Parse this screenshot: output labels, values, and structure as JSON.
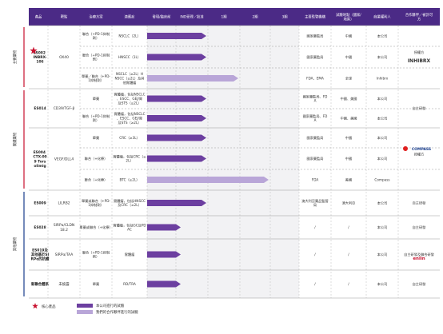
{
  "header": {
    "columns": [
      "產品",
      "靶點",
      "治療方案",
      "適應症",
      "發現/臨床前",
      "IND受理／批准",
      "1期",
      "2期",
      "3期",
      "主要監管機構",
      "試驗地點（國家/地區）",
      "商業權利人",
      "合作夥伴／被許可方"
    ]
  },
  "side_groups": [
    {
      "label": "主要藥物",
      "color": "#c8102e"
    },
    {
      "label": "關鍵藥物",
      "color": "#c8102e"
    },
    {
      "label": "其他藥物",
      "color": "#1a3e8c"
    }
  ],
  "rows": [
    {
      "product": "ES002 INBRX-106",
      "star": true,
      "target": "OX40",
      "regimen": "聯合（+PD-1抑制劑）",
      "indication": "NSCLC（2L）",
      "value": 1,
      "style": "own",
      "regulator": "國家藥監局",
      "region": "中國",
      "owner": "本公司",
      "partner": "授權方"
    },
    {
      "product": "",
      "star": false,
      "target": "",
      "regimen": "聯合（+PD-1抑制劑）",
      "indication": "HNSCC（1L）",
      "value": 1,
      "style": "own",
      "regulator": "國家藥監局",
      "region": "中國",
      "owner": "本公司",
      "partner": ""
    },
    {
      "product": "",
      "star": false,
      "target": "",
      "regimen": "單藥／聯合（+PD-1抑制劑）",
      "indication": "NSCLC（≥2L）HNSCC（≥2L）及其他實體瘤",
      "value": 2,
      "style": "partner",
      "regulator": "FDA、EMA",
      "region": "全球",
      "owner": "Inhibrx",
      "partner": ""
    },
    {
      "product": "ES014",
      "star": false,
      "target": "CD39/TGF-β",
      "regimen": "單藥",
      "indication": "實體瘤，包括NSCLC、ESCC、GEJ/胃及STS（≥2L）",
      "value": 1,
      "style": "own",
      "regulator": "國家藥監局、FDA",
      "region": "中國、美國",
      "owner": "本公司",
      "partner": "自主研發"
    },
    {
      "product": "",
      "star": false,
      "target": "",
      "regimen": "聯合（+PD-1抑制劑）",
      "indication": "實體瘤，包括NSCLC、ESCC、GEJ/胃及STS（≥2L）",
      "value": 1,
      "style": "own",
      "regulator": "國家藥監局、FDA",
      "region": "中國、美國",
      "owner": "本公司",
      "partner": ""
    },
    {
      "product": "ES004 CTX-009 Torsolimig",
      "star": false,
      "target": "VEGF/DLL4",
      "regimen": "單藥",
      "indication": "CRC（≥3L）",
      "value": 1,
      "style": "own",
      "regulator": "國家藥監局",
      "region": "中國",
      "owner": "本公司",
      "partner": "授權方"
    },
    {
      "product": "",
      "star": false,
      "target": "",
      "regimen": "聯合（+化療）",
      "indication": "實體瘤，包括CRC（≥2L）",
      "value": 1,
      "style": "own",
      "regulator": "國家藥監局",
      "region": "中國",
      "owner": "本公司",
      "partner": ""
    },
    {
      "product": "",
      "star": false,
      "target": "",
      "regimen": "聯合（+化療）",
      "indication": "BTC（≥2L）",
      "value": 3,
      "style": "partner",
      "regulator": "FDA",
      "region": "美國",
      "owner": "Compass",
      "partner": ""
    },
    {
      "product": "ES009",
      "star": false,
      "target": "LILRB2",
      "regimen": "單藥或聯合（+PD-1抑制劑）",
      "indication": "實體瘤，包括HNSCC及CRC（≥2L）",
      "value": 1,
      "style": "own",
      "regulator": "澳大利亞藥品監管局",
      "region": "澳大利亞",
      "owner": "本公司",
      "partner": "自主研發"
    },
    {
      "product": "ES028",
      "star": false,
      "target": "SIRPα/CLDN18.2",
      "regimen": "單藥或聯合（+化療）",
      "indication": "實體瘤，包括GC及PDAC",
      "value": 0,
      "style": "own",
      "regulator": "/",
      "region": "/",
      "owner": "本公司",
      "partner": "自主研發"
    },
    {
      "product": "ES019及其他基於SIRPα的抗體",
      "star": false,
      "target": "SIRPα/TAA",
      "regimen": "聯合（+PD-1抑制劑）",
      "indication": "實體瘤",
      "value": 0,
      "style": "own",
      "regulator": "/",
      "region": "/",
      "owner": "本公司",
      "partner": "自主研發及聯合研發"
    },
    {
      "product": "新聯合體系",
      "star": false,
      "target": "未披露",
      "regimen": "單藥",
      "indication": "RD/TRA",
      "value": 0,
      "style": "own",
      "regulator": "/",
      "region": "/",
      "owner": "本公司",
      "partner": "自主研發"
    }
  ],
  "logos": {
    "inhibrx": "INHIBRX",
    "compass": "COMPASS",
    "partner_logo": "enlin"
  },
  "legend": [
    {
      "label": "核心產品",
      "kind": "star"
    },
    {
      "label": "本公司進行的試驗",
      "kind": "own"
    },
    {
      "label": "我們的合作夥伴進行的試驗",
      "kind": "partner"
    }
  ],
  "colors": {
    "header_bg": "#4b2a86",
    "own": "#6c3fa0",
    "partner": "#b9a6d8",
    "star": "#c8102e",
    "grid": "#bdbdbd",
    "band": "#f2f2f4"
  },
  "chart_data": {
    "type": "table",
    "stages": [
      "發現/臨床前",
      "IND受理／批准",
      "1期",
      "2期",
      "3期"
    ],
    "series": [
      {
        "name": "本公司進行的試驗",
        "rows": [
          0,
          1,
          3,
          4,
          5,
          6,
          8,
          9,
          10,
          11
        ],
        "values": [
          1,
          1,
          1,
          1,
          1,
          1,
          1,
          0,
          0,
          0
        ]
      },
      {
        "name": "我們的合作夥伴進行的試驗",
        "rows": [
          2,
          7
        ],
        "values": [
          2,
          3
        ]
      }
    ]
  }
}
